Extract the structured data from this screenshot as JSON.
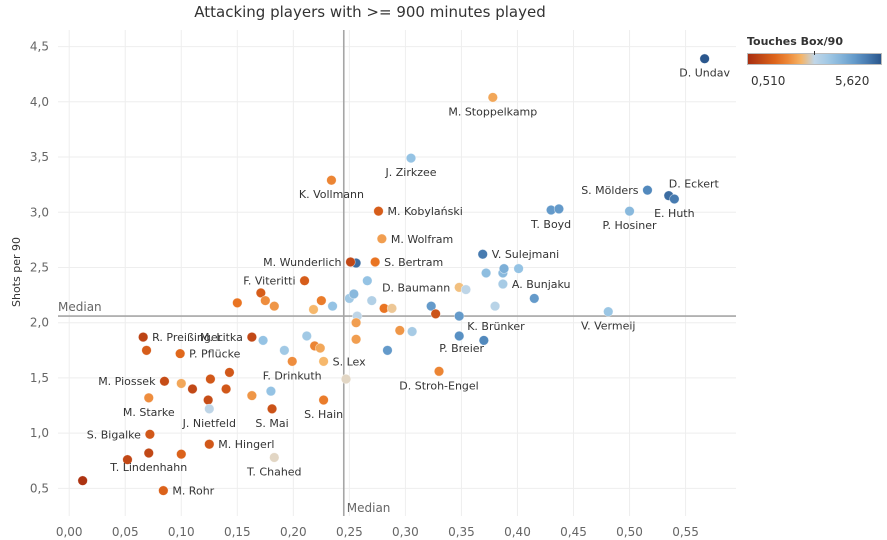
{
  "chart_data": {
    "type": "scatter",
    "title": "Attacking players with >= 900 minutes played",
    "xlabel": "",
    "ylabel": "Shots per 90",
    "xlim": [
      -0.01,
      0.595
    ],
    "ylim": [
      0.25,
      4.65
    ],
    "xticks": [
      "0,00",
      "0,05",
      "0,10",
      "0,15",
      "0,20",
      "0,25",
      "0,30",
      "0,35",
      "0,40",
      "0,45",
      "0,50",
      "0,55"
    ],
    "xtick_values": [
      0,
      0.05,
      0.1,
      0.15,
      0.2,
      0.25,
      0.3,
      0.35,
      0.4,
      0.45,
      0.5,
      0.55
    ],
    "yticks": [
      "0,5",
      "1,0",
      "1,5",
      "2,0",
      "2,5",
      "3,0",
      "3,5",
      "4,0",
      "4,5"
    ],
    "ytick_values": [
      0.5,
      1.0,
      1.5,
      2.0,
      2.5,
      3.0,
      3.5,
      4.0,
      4.5
    ],
    "median_x": 0.245,
    "median_y": 2.06,
    "median_x_label": "Median",
    "median_y_label": "Median",
    "color_legend": {
      "title": "Touches Box/90",
      "min_label": "0,510",
      "max_label": "5,620",
      "min": 0.51,
      "max": 5.62,
      "mid": 3.0
    },
    "points": [
      {
        "x": 0.567,
        "y": 4.39,
        "c": 5.6,
        "label": "D. Undav",
        "lp": "below"
      },
      {
        "x": 0.378,
        "y": 4.04,
        "c": 2.4,
        "label": "M. Stoppelkamp",
        "lp": "below"
      },
      {
        "x": 0.305,
        "y": 3.49,
        "c": 3.8,
        "label": "J. Zirkzee",
        "lp": "below"
      },
      {
        "x": 0.234,
        "y": 3.29,
        "c": 2.0,
        "label": "K. Vollmann",
        "lp": "below"
      },
      {
        "x": 0.276,
        "y": 3.01,
        "c": 1.4,
        "label": "M. Kobylański",
        "lp": "right"
      },
      {
        "x": 0.279,
        "y": 2.76,
        "c": 2.3,
        "label": "M. Wolfram",
        "lp": "right"
      },
      {
        "x": 0.516,
        "y": 3.2,
        "c": 4.9,
        "label": "S. Mölders",
        "lp": "left"
      },
      {
        "x": 0.535,
        "y": 3.15,
        "c": 5.3,
        "label": "D. Eckert",
        "lp": "aboveright"
      },
      {
        "x": 0.54,
        "y": 3.12,
        "c": 5.1,
        "label": "E. Huth",
        "lp": "below"
      },
      {
        "x": 0.5,
        "y": 3.01,
        "c": 4.0,
        "label": "P. Hosiner",
        "lp": "below"
      },
      {
        "x": 0.43,
        "y": 3.02,
        "c": 4.6,
        "label": "T. Boyd",
        "lp": "below"
      },
      {
        "x": 0.437,
        "y": 3.03,
        "c": 4.6,
        "label": ""
      },
      {
        "x": 0.369,
        "y": 2.62,
        "c": 5.1,
        "label": "V. Sulejmani",
        "lp": "right"
      },
      {
        "x": 0.256,
        "y": 2.54,
        "c": 5.3,
        "label": ""
      },
      {
        "x": 0.251,
        "y": 2.55,
        "c": 1.0,
        "label": "M. Wunderlich",
        "lp": "left"
      },
      {
        "x": 0.273,
        "y": 2.55,
        "c": 1.8,
        "label": "S. Bertram",
        "lp": "right"
      },
      {
        "x": 0.21,
        "y": 2.38,
        "c": 1.4,
        "label": "F. Viteritti",
        "lp": "left"
      },
      {
        "x": 0.266,
        "y": 2.38,
        "c": 3.8,
        "label": ""
      },
      {
        "x": 0.372,
        "y": 2.45,
        "c": 3.9,
        "label": ""
      },
      {
        "x": 0.387,
        "y": 2.45,
        "c": 4.0,
        "label": ""
      },
      {
        "x": 0.388,
        "y": 2.49,
        "c": 4.2,
        "label": ""
      },
      {
        "x": 0.401,
        "y": 2.49,
        "c": 3.8,
        "label": ""
      },
      {
        "x": 0.387,
        "y": 2.35,
        "c": 3.5,
        "label": "A. Bunjaku",
        "lp": "right"
      },
      {
        "x": 0.348,
        "y": 2.32,
        "c": 2.7,
        "label": "D. Baumann",
        "lp": "left"
      },
      {
        "x": 0.354,
        "y": 2.3,
        "c": 3.1,
        "label": ""
      },
      {
        "x": 0.415,
        "y": 2.22,
        "c": 4.6,
        "label": ""
      },
      {
        "x": 0.38,
        "y": 2.15,
        "c": 3.2,
        "label": ""
      },
      {
        "x": 0.323,
        "y": 2.15,
        "c": 4.6,
        "label": ""
      },
      {
        "x": 0.327,
        "y": 2.08,
        "c": 1.2,
        "label": ""
      },
      {
        "x": 0.348,
        "y": 2.06,
        "c": 4.6,
        "label": "K. Brünker",
        "lp": "belowright"
      },
      {
        "x": 0.481,
        "y": 2.1,
        "c": 3.7,
        "label": "V. Vermeij",
        "lp": "below"
      },
      {
        "x": 0.171,
        "y": 2.27,
        "c": 1.4,
        "label": ""
      },
      {
        "x": 0.15,
        "y": 2.18,
        "c": 1.8,
        "label": ""
      },
      {
        "x": 0.175,
        "y": 2.2,
        "c": 2.1,
        "label": ""
      },
      {
        "x": 0.183,
        "y": 2.15,
        "c": 2.2,
        "label": ""
      },
      {
        "x": 0.163,
        "y": 1.87,
        "c": 1.0,
        "label": "M. Litka",
        "lp": "left"
      },
      {
        "x": 0.173,
        "y": 1.84,
        "c": 3.8,
        "label": ""
      },
      {
        "x": 0.225,
        "y": 2.2,
        "c": 1.9,
        "label": ""
      },
      {
        "x": 0.218,
        "y": 2.12,
        "c": 2.6,
        "label": ""
      },
      {
        "x": 0.235,
        "y": 2.15,
        "c": 3.8,
        "label": ""
      },
      {
        "x": 0.25,
        "y": 2.22,
        "c": 3.6,
        "label": ""
      },
      {
        "x": 0.254,
        "y": 2.26,
        "c": 4.0,
        "label": ""
      },
      {
        "x": 0.27,
        "y": 2.2,
        "c": 3.3,
        "label": ""
      },
      {
        "x": 0.281,
        "y": 2.13,
        "c": 1.8,
        "label": ""
      },
      {
        "x": 0.288,
        "y": 2.13,
        "c": 2.8,
        "label": ""
      },
      {
        "x": 0.257,
        "y": 2.06,
        "c": 3.1,
        "label": ""
      },
      {
        "x": 0.256,
        "y": 2.0,
        "c": 2.3,
        "label": ""
      },
      {
        "x": 0.212,
        "y": 1.88,
        "c": 3.6,
        "label": ""
      },
      {
        "x": 0.219,
        "y": 1.79,
        "c": 2.0,
        "label": ""
      },
      {
        "x": 0.224,
        "y": 1.77,
        "c": 2.4,
        "label": ""
      },
      {
        "x": 0.256,
        "y": 1.85,
        "c": 2.3,
        "label": ""
      },
      {
        "x": 0.295,
        "y": 1.93,
        "c": 2.2,
        "label": ""
      },
      {
        "x": 0.306,
        "y": 1.92,
        "c": 3.5,
        "label": ""
      },
      {
        "x": 0.348,
        "y": 1.88,
        "c": 4.8,
        "label": "P. Breier",
        "lp": "belowleft"
      },
      {
        "x": 0.37,
        "y": 1.84,
        "c": 4.9,
        "label": ""
      },
      {
        "x": 0.284,
        "y": 1.75,
        "c": 4.6,
        "label": ""
      },
      {
        "x": 0.066,
        "y": 1.87,
        "c": 0.9,
        "label": "R. Preißinger",
        "lp": "right"
      },
      {
        "x": 0.069,
        "y": 1.75,
        "c": 1.4,
        "label": ""
      },
      {
        "x": 0.099,
        "y": 1.72,
        "c": 1.6,
        "label": "P. Pflücke",
        "lp": "right"
      },
      {
        "x": 0.192,
        "y": 1.75,
        "c": 3.6,
        "label": ""
      },
      {
        "x": 0.199,
        "y": 1.65,
        "c": 2.1,
        "label": "F. Drinkuth",
        "lp": "below"
      },
      {
        "x": 0.227,
        "y": 1.65,
        "c": 2.6,
        "label": "S. Lex",
        "lp": "right"
      },
      {
        "x": 0.33,
        "y": 1.56,
        "c": 2.0,
        "label": "D. Stroh-Engel",
        "lp": "below"
      },
      {
        "x": 0.143,
        "y": 1.55,
        "c": 1.3,
        "label": ""
      },
      {
        "x": 0.126,
        "y": 1.49,
        "c": 1.3,
        "label": ""
      },
      {
        "x": 0.085,
        "y": 1.47,
        "c": 1.1,
        "label": "M. Piossek",
        "lp": "left"
      },
      {
        "x": 0.1,
        "y": 1.45,
        "c": 2.4,
        "label": ""
      },
      {
        "x": 0.11,
        "y": 1.4,
        "c": 1.0,
        "label": ""
      },
      {
        "x": 0.14,
        "y": 1.4,
        "c": 1.3,
        "label": ""
      },
      {
        "x": 0.124,
        "y": 1.3,
        "c": 1.1,
        "label": ""
      },
      {
        "x": 0.163,
        "y": 1.34,
        "c": 2.2,
        "label": ""
      },
      {
        "x": 0.18,
        "y": 1.38,
        "c": 3.8,
        "label": ""
      },
      {
        "x": 0.247,
        "y": 1.49,
        "c": 3.0,
        "label": ""
      },
      {
        "x": 0.071,
        "y": 1.32,
        "c": 2.1,
        "label": "M. Starke",
        "lp": "below"
      },
      {
        "x": 0.125,
        "y": 1.22,
        "c": 3.1,
        "label": "J. Nietfeld",
        "lp": "below"
      },
      {
        "x": 0.181,
        "y": 1.22,
        "c": 1.2,
        "label": "S. Mai",
        "lp": "below"
      },
      {
        "x": 0.227,
        "y": 1.3,
        "c": 1.9,
        "label": "S. Hain",
        "lp": "below"
      },
      {
        "x": 0.072,
        "y": 0.99,
        "c": 1.3,
        "label": "S. Bigalke",
        "lp": "left"
      },
      {
        "x": 0.125,
        "y": 0.9,
        "c": 1.3,
        "label": "M. Hingerl",
        "lp": "right"
      },
      {
        "x": 0.183,
        "y": 0.78,
        "c": 3.0,
        "label": "T. Chahed",
        "lp": "below"
      },
      {
        "x": 0.052,
        "y": 0.76,
        "c": 1.0,
        "label": ""
      },
      {
        "x": 0.071,
        "y": 0.82,
        "c": 1.0,
        "label": "T. Lindenhahn",
        "lp": "below"
      },
      {
        "x": 0.1,
        "y": 0.81,
        "c": 1.5,
        "label": ""
      },
      {
        "x": 0.012,
        "y": 0.57,
        "c": 0.6,
        "label": ""
      },
      {
        "x": 0.084,
        "y": 0.48,
        "c": 1.5,
        "label": "M. Rohr",
        "lp": "right"
      }
    ]
  }
}
